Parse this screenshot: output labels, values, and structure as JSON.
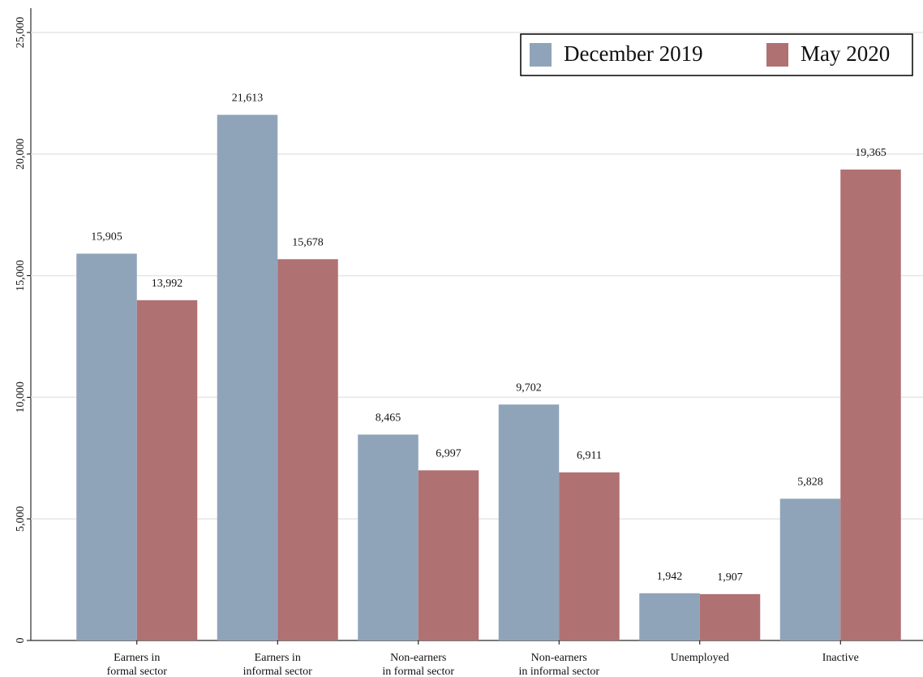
{
  "chart_data": {
    "type": "bar",
    "categories": [
      [
        "Earners in",
        "formal sector"
      ],
      [
        "Earners in",
        "informal sector"
      ],
      [
        "Non-earners",
        "in formal sector"
      ],
      [
        "Non-earners",
        "in informal sector"
      ],
      [
        "Unemployed"
      ],
      [
        "Inactive"
      ]
    ],
    "series": [
      {
        "name": "December 2019",
        "color": "#8fa4b9",
        "values": [
          15905,
          21613,
          8465,
          9702,
          1942,
          5828
        ],
        "value_labels": [
          "15,905",
          "21,613",
          "8,465",
          "9,702",
          "1,942",
          "5,828"
        ]
      },
      {
        "name": "May 2020",
        "color": "#b07173",
        "values": [
          13992,
          15678,
          6997,
          6911,
          1907,
          19365
        ],
        "value_labels": [
          "13,992",
          "15,678",
          "6,997",
          "6,911",
          "1,907",
          "19,365"
        ]
      }
    ],
    "ylim": [
      0,
      25000
    ],
    "yticks": [
      0,
      {
        "value": 5000,
        "label": "5,000"
      },
      {
        "value": 10000,
        "label": "10,000"
      },
      {
        "value": 15000,
        "label": "15,000"
      },
      {
        "value": 20000,
        "label": "20,000"
      },
      {
        "value": 25000,
        "label": "25,000"
      }
    ],
    "grid": true,
    "legend": "top-right"
  }
}
